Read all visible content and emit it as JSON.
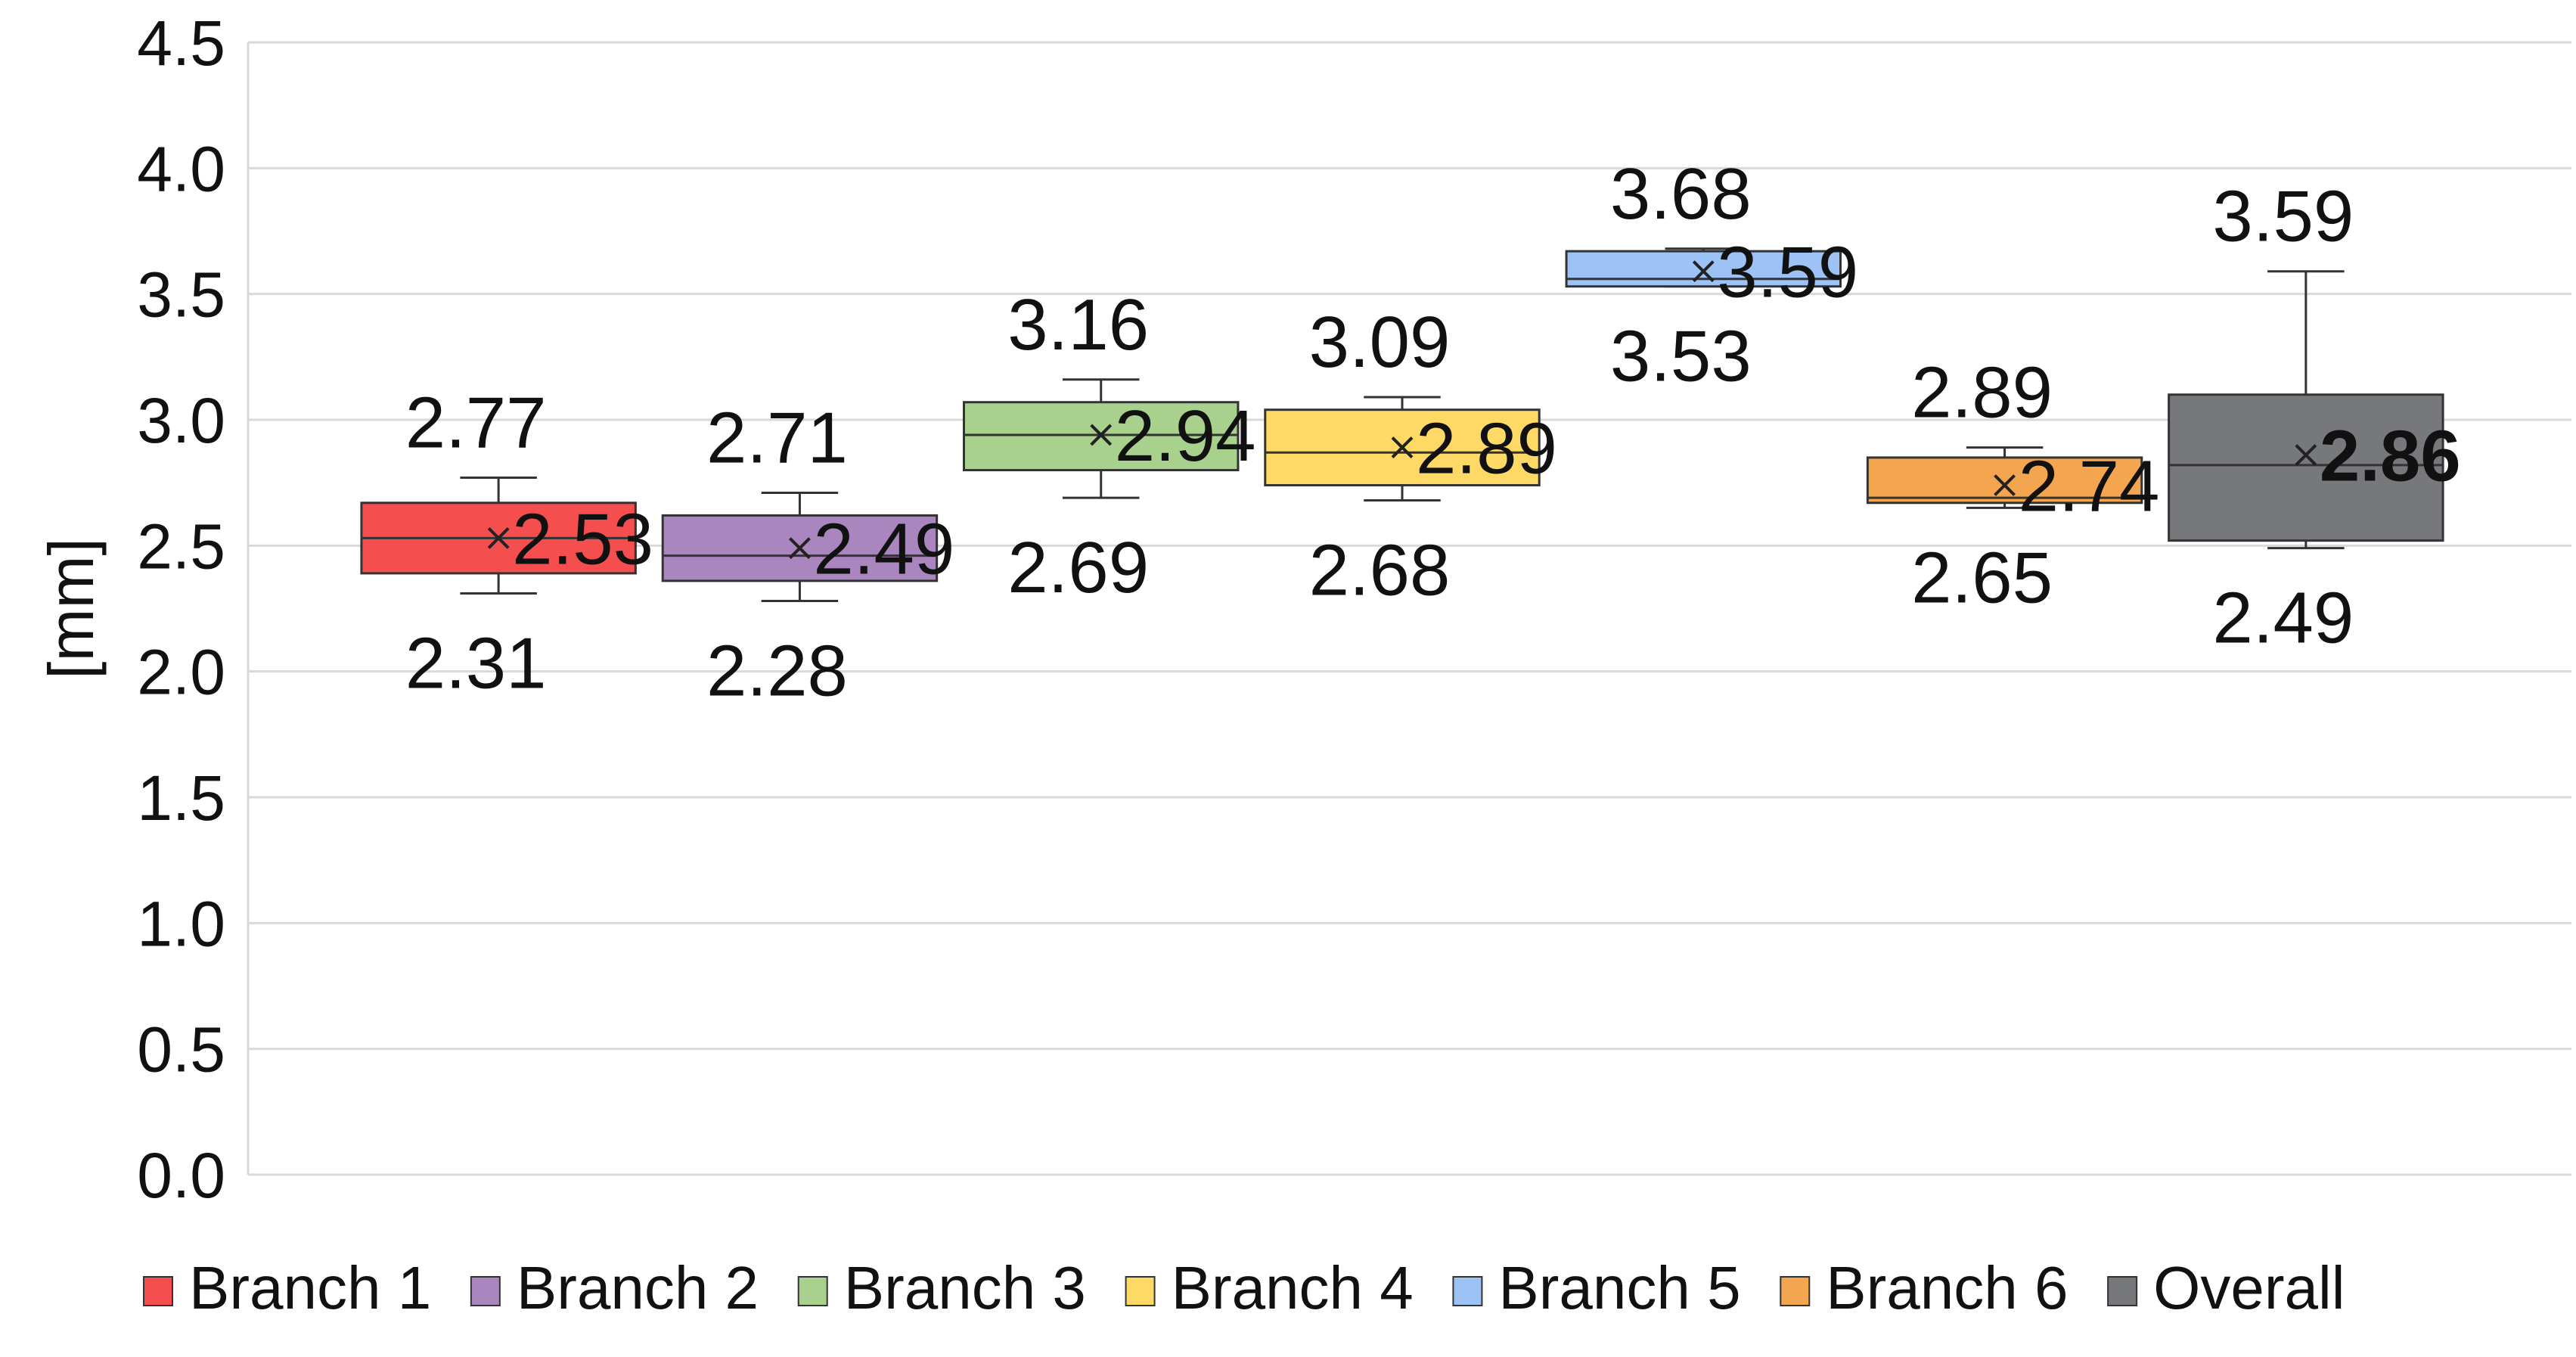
{
  "chart_data": {
    "type": "box",
    "title": "",
    "xlabel": "",
    "ylabel": "[mm]",
    "ylim": [
      0,
      4.5
    ],
    "ytick_step": 0.5,
    "yticks": [
      "0.0",
      "0.5",
      "1.0",
      "1.5",
      "2.0",
      "2.5",
      "3.0",
      "3.5",
      "4.0",
      "4.5"
    ],
    "grid": true,
    "legend_position": "bottom",
    "series": [
      {
        "name": "Branch 1",
        "color": "#f44e4e",
        "min": 2.31,
        "q1": 2.39,
        "median": 2.53,
        "q3": 2.67,
        "max": 2.77,
        "mean": 2.53,
        "min_label": "2.31",
        "max_label": "2.77",
        "mean_label": "2.53"
      },
      {
        "name": "Branch 2",
        "color": "#a986bd",
        "min": 2.28,
        "q1": 2.36,
        "median": 2.46,
        "q3": 2.62,
        "max": 2.71,
        "mean": 2.49,
        "min_label": "2.28",
        "max_label": "2.71",
        "mean_label": "2.49"
      },
      {
        "name": "Branch 3",
        "color": "#a9d18e",
        "min": 2.69,
        "q1": 2.8,
        "median": 2.94,
        "q3": 3.07,
        "max": 3.16,
        "mean": 2.94,
        "min_label": "2.69",
        "max_label": "3.16",
        "mean_label": "2.94"
      },
      {
        "name": "Branch 4",
        "color": "#ffd966",
        "min": 2.68,
        "q1": 2.74,
        "median": 2.87,
        "q3": 3.04,
        "max": 3.09,
        "mean": 2.89,
        "min_label": "2.68",
        "max_label": "3.09",
        "mean_label": "2.89"
      },
      {
        "name": "Branch 5",
        "color": "#9dc3f6",
        "min": 3.53,
        "q1": 3.53,
        "median": 3.56,
        "q3": 3.67,
        "max": 3.68,
        "mean": 3.59,
        "min_label": "3.53",
        "max_label": "3.68",
        "mean_label": "3.59"
      },
      {
        "name": "Branch 6",
        "color": "#f4a54f",
        "min": 2.65,
        "q1": 2.67,
        "median": 2.69,
        "q3": 2.85,
        "max": 2.89,
        "mean": 2.74,
        "min_label": "2.65",
        "max_label": "2.89",
        "mean_label": "2.74"
      },
      {
        "name": "Overall",
        "color": "#76787c",
        "min": 2.49,
        "q1": 2.52,
        "median": 2.82,
        "q3": 3.1,
        "max": 3.59,
        "mean": 2.86,
        "min_label": "2.49",
        "max_label": "3.59",
        "mean_label": "2.86",
        "mean_bold": true
      }
    ]
  }
}
